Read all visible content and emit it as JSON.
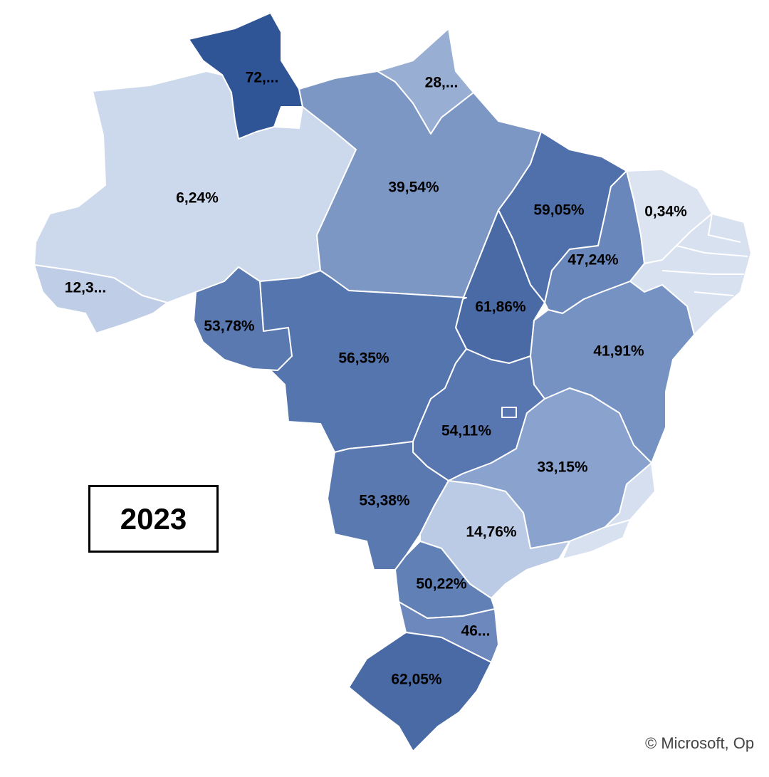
{
  "year": "2023",
  "attribution": "© Microsoft, Op",
  "colors": {
    "background": "#ffffff",
    "border": "#ffffff",
    "low": "#cdd9ec",
    "high": "#2f5597"
  },
  "states": [
    {
      "id": "roraima",
      "label": "72,...",
      "color": "#2f5597"
    },
    {
      "id": "amapa",
      "label": "28,...",
      "color": "#98aed3"
    },
    {
      "id": "amazonas",
      "label": "6,24%",
      "color": "#ccd8ec"
    },
    {
      "id": "para",
      "label": "39,54%",
      "color": "#7c97c4"
    },
    {
      "id": "acre",
      "label": "12,3...",
      "color": "#bfcde6"
    },
    {
      "id": "rondonia",
      "label": "53,78%",
      "color": "#5a79b1"
    },
    {
      "id": "mato-grosso",
      "label": "56,35%",
      "color": "#5575ae"
    },
    {
      "id": "tocantins",
      "label": "61,86%",
      "color": "#4a6aa6"
    },
    {
      "id": "maranhao",
      "label": "59,05%",
      "color": "#5070ab"
    },
    {
      "id": "piaui",
      "label": "47,24%",
      "color": "#6a87bb"
    },
    {
      "id": "ceara",
      "label": "0,34%",
      "color": "#dce4f2"
    },
    {
      "id": "northeast-east",
      "label": "",
      "color": "#d8e1f0"
    },
    {
      "id": "bahia",
      "label": "41,91%",
      "color": "#7692c2"
    },
    {
      "id": "goias",
      "label": "54,11%",
      "color": "#5877b0"
    },
    {
      "id": "minas-gerais",
      "label": "33,15%",
      "color": "#8aa3ce"
    },
    {
      "id": "espirito-santo",
      "label": "",
      "color": "#d6dff0"
    },
    {
      "id": "mato-grosso-do-sul",
      "label": "53,38%",
      "color": "#5a79b1"
    },
    {
      "id": "sao-paulo",
      "label": "14,76%",
      "color": "#bccbe5"
    },
    {
      "id": "rio-de-janeiro",
      "label": "",
      "color": "#d8e1f0"
    },
    {
      "id": "parana",
      "label": "50,22%",
      "color": "#6180b5"
    },
    {
      "id": "santa-catarina",
      "label": "46...",
      "color": "#6c88bc"
    },
    {
      "id": "rio-grande-do-sul",
      "label": "62,05%",
      "color": "#4a6aa6"
    }
  ]
}
